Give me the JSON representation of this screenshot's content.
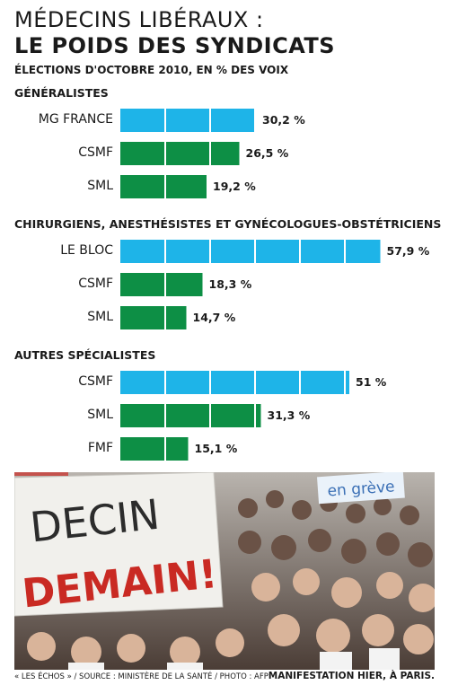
{
  "header": {
    "title_line1": "MÉDECINS LIBÉRAUX :",
    "title_line2": "LE POIDS DES SYNDICATS",
    "subtitle": "ÉLECTIONS D'OCTOBRE 2010, EN % DES VOIX"
  },
  "colors": {
    "leader": "#1eb4e8",
    "other": "#0d8f45"
  },
  "chart_data": {
    "type": "bar",
    "orientation": "horizontal",
    "unit": "%",
    "groups": [
      {
        "title": "GÉNÉRALISTES",
        "categories": [
          "MG FRANCE",
          "CSMF",
          "SML"
        ],
        "values": [
          30.2,
          26.5,
          19.2
        ],
        "labels": [
          "30,2 %",
          "26,5 %",
          "19,2 %"
        ]
      },
      {
        "title": "CHIRURGIENS, ANESTHÉSISTES ET GYNÉCOLOGUES-OBSTÉTRICIENS",
        "categories": [
          "LE BLOC",
          "CSMF",
          "SML"
        ],
        "values": [
          57.9,
          18.3,
          14.7
        ],
        "labels": [
          "57,9 %",
          "18,3 %",
          "14,7 %"
        ]
      },
      {
        "title": "AUTRES SPÉCIALISTES",
        "categories": [
          "CSMF",
          "SML",
          "FMF"
        ],
        "values": [
          51,
          31.3,
          15.1
        ],
        "labels": [
          "51 %",
          "31,3 %",
          "15,1 %"
        ]
      }
    ]
  },
  "photo": {
    "banner_text_1": "DECIN",
    "banner_text_2": "DEMAIN!",
    "sign_text": "en grève"
  },
  "footer": {
    "source": "« LES ÉCHOS » / SOURCE : MINISTÈRE DE LA SANTÉ / PHOTO : AFP",
    "caption": "MANIFESTATION HIER, À PARIS."
  }
}
